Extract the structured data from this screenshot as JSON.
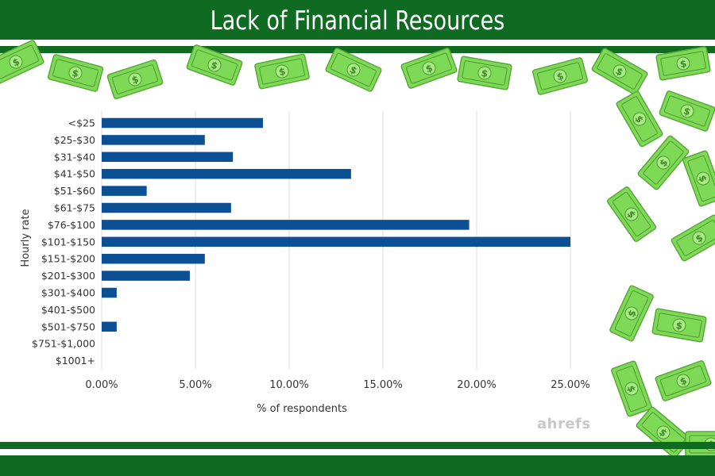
{
  "header": {
    "title": "Lack of Financial Resources"
  },
  "watermark": "ahrefs",
  "decor": {
    "icon": "dollar-bill-icon",
    "bill_color": "#7ed957",
    "stripe_color": "#0f6b22"
  },
  "chart_data": {
    "type": "bar",
    "orientation": "horizontal",
    "title": "",
    "xlabel": "% of respondents",
    "ylabel": "Hourly rate",
    "categories": [
      "<$25",
      "$25-$30",
      "$31-$40",
      "$41-$50",
      "$51-$60",
      "$61-$75",
      "$76-$100",
      "$101-$150",
      "$151-$200",
      "$201-$300",
      "$301-$400",
      "$401-$500",
      "$501-$750",
      "$751-$1,000",
      "$1001+"
    ],
    "values": [
      8.6,
      5.5,
      7.0,
      13.3,
      2.4,
      6.9,
      19.6,
      25.0,
      5.5,
      4.7,
      0.8,
      0.0,
      0.8,
      0.0,
      0.0
    ],
    "xlim": [
      0,
      25
    ],
    "xticks": [
      "0.00%",
      "5.00%",
      "10.00%",
      "15.00%",
      "20.00%",
      "25.00%"
    ],
    "grid": true,
    "bar_color": "#0b4f95"
  }
}
